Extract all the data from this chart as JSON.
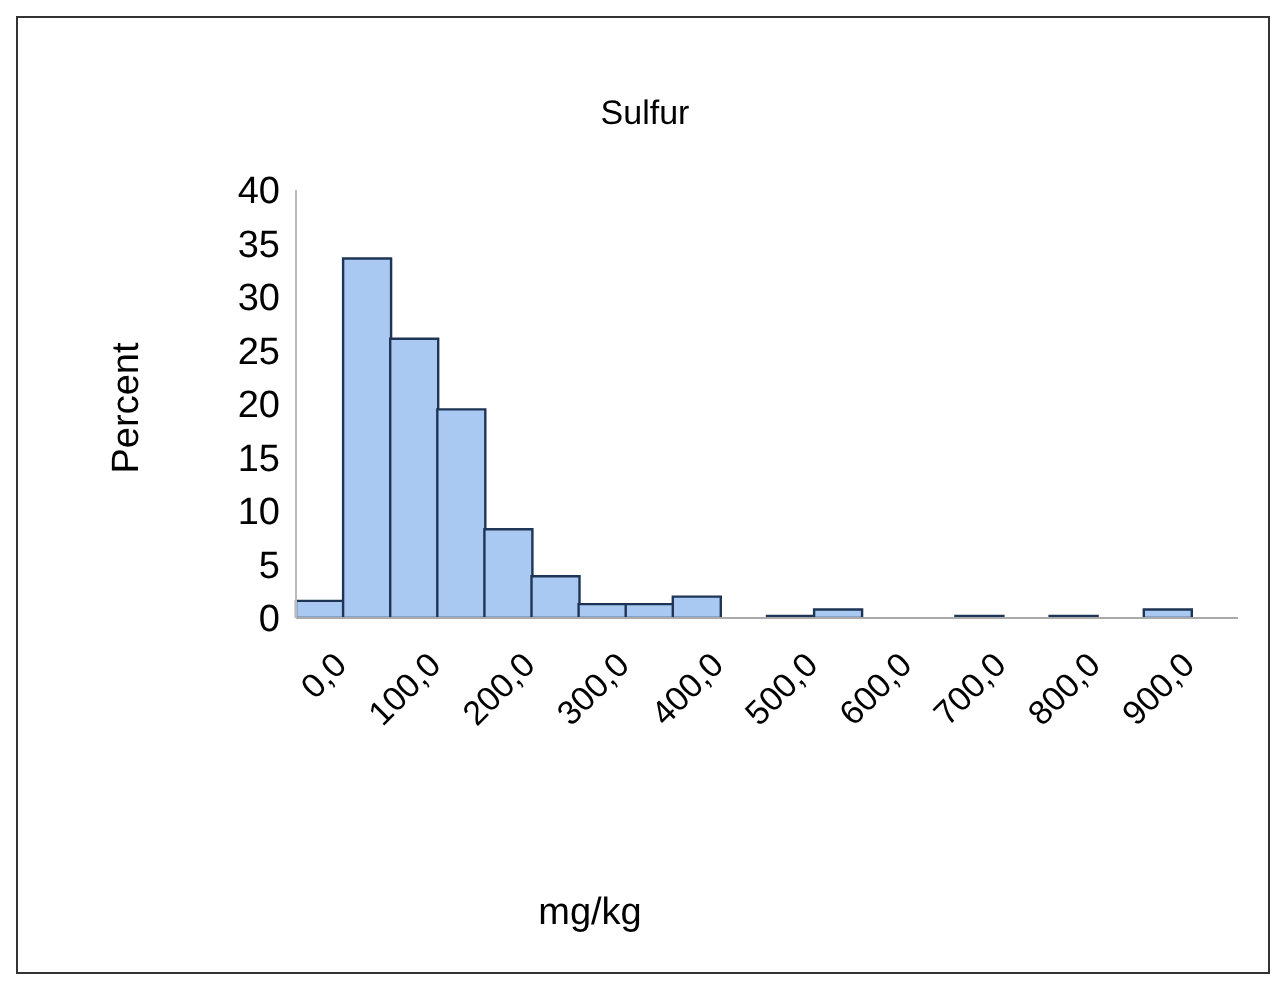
{
  "chart_data": {
    "type": "bar",
    "title": "Sulfur",
    "xlabel": "mg/kg",
    "ylabel": "Percent",
    "categories": [
      "0,0",
      null,
      "100,0",
      null,
      "200,0",
      null,
      "300,0",
      null,
      "400,0",
      null,
      "500,0",
      null,
      "600,0",
      null,
      "700,0",
      null,
      "800,0",
      null,
      "900,0",
      null
    ],
    "values": [
      1.6,
      33.6,
      26.1,
      19.5,
      8.3,
      3.9,
      1.3,
      1.3,
      2.0,
      0,
      0.2,
      0.8,
      0,
      0,
      0.2,
      0,
      0.2,
      0,
      0.8,
      0
    ],
    "color": "#a9c8f2",
    "ylim": [
      0,
      40
    ],
    "yticks": [
      0,
      5,
      10,
      15,
      20,
      25,
      30,
      35,
      40
    ]
  }
}
